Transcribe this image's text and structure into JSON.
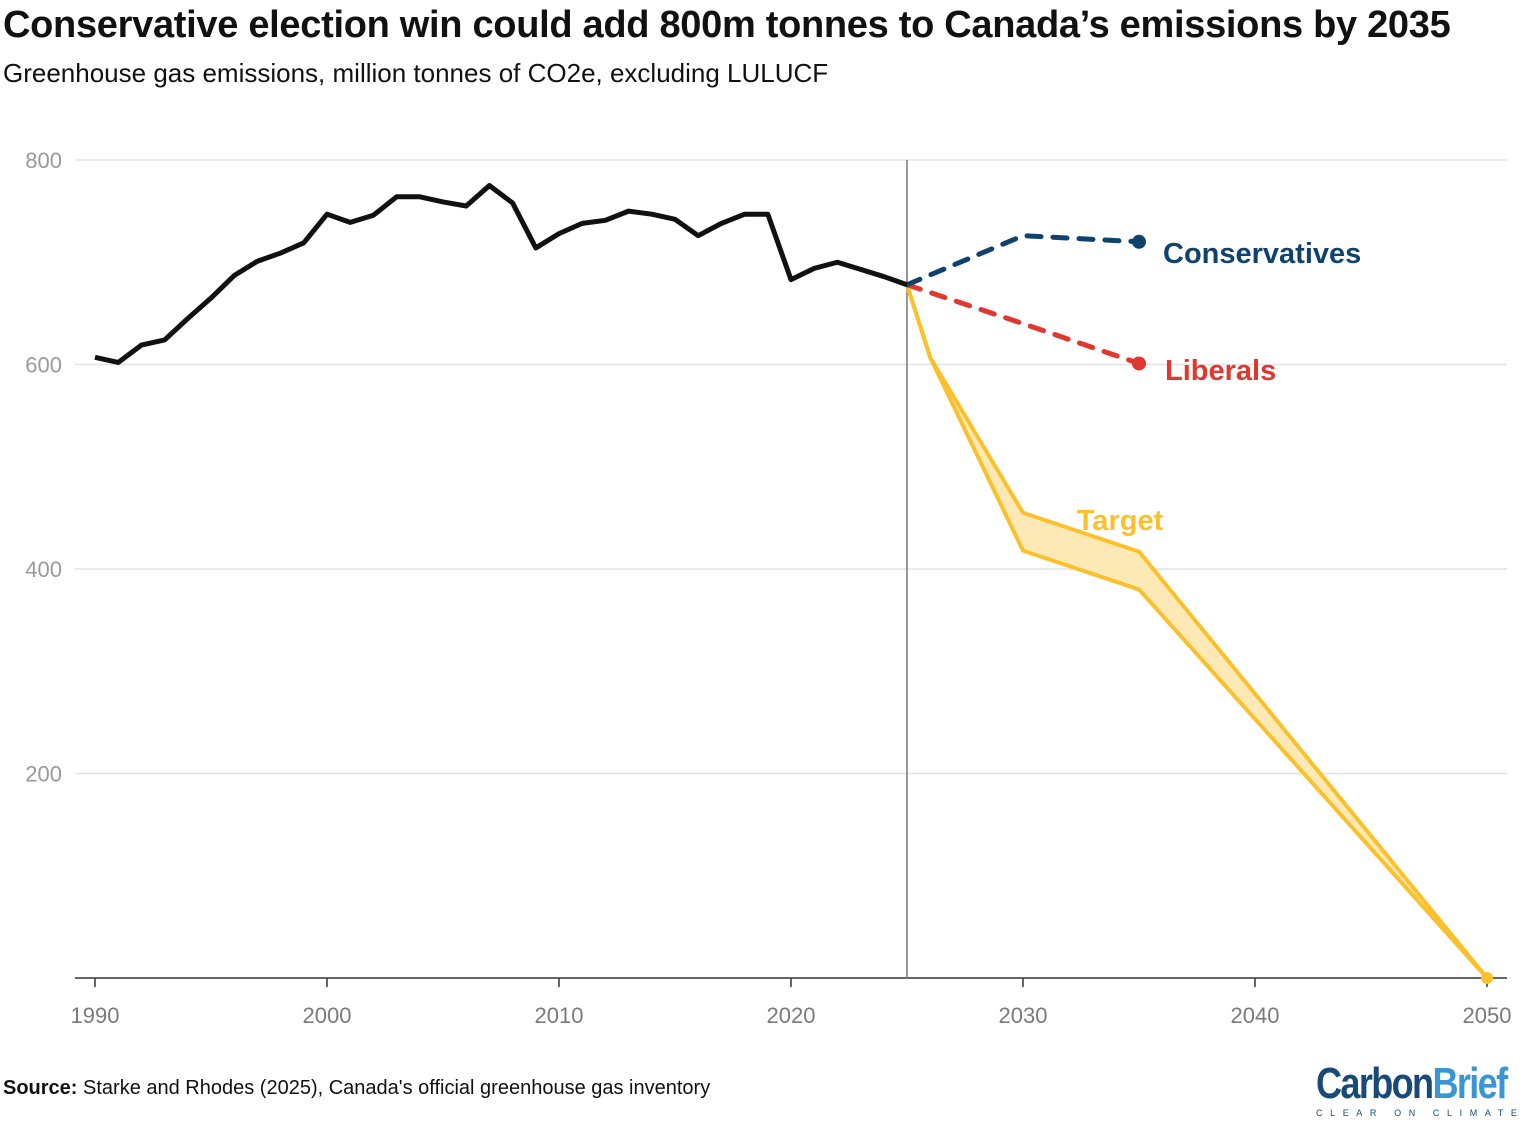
{
  "title": "Conservative election win could add 800m tonnes to Canada’s emissions by 2035",
  "subtitle": "Greenhouse gas emissions, million tonnes of CO2e, excluding LULUCF",
  "source_label": "Source:",
  "source_text": " Starke and Rhodes (2025), Canada's official greenhouse gas inventory",
  "logo": {
    "carbon": "Carbon",
    "brief": "Brief",
    "tagline": "CLEAR ON CLIMATE"
  },
  "chart_data": {
    "type": "line",
    "title": "Conservative election win could add 800m tonnes to Canada’s emissions by 2035",
    "ylabel": "",
    "xlabel": "",
    "xlim": [
      1990,
      2050
    ],
    "ylim": [
      0,
      800
    ],
    "x_ticks": [
      1990,
      2000,
      2010,
      2020,
      2030,
      2040,
      2050
    ],
    "y_ticks": [
      200,
      400,
      600,
      800
    ],
    "grid": "horizontal",
    "vertical_marker": 2025,
    "series": [
      {
        "color": "#111111",
        "style": "solid",
        "x": [
          1990,
          1991,
          1992,
          1993,
          1994,
          1995,
          1996,
          1997,
          1998,
          1999,
          2000,
          2001,
          2002,
          2003,
          2004,
          2005,
          2006,
          2007,
          2008,
          2009,
          2010,
          2011,
          2012,
          2013,
          2014,
          2015,
          2016,
          2017,
          2018,
          2019,
          2020,
          2021,
          2022,
          2023,
          2024,
          2025
        ],
        "y": [
          607,
          602,
          619,
          624,
          645,
          665,
          687,
          701,
          709,
          719,
          747,
          739,
          746,
          764,
          764,
          759,
          755,
          775,
          758,
          714,
          728,
          738,
          741,
          750,
          747,
          742,
          726,
          738,
          747,
          747,
          683,
          694,
          700,
          693,
          686,
          678
        ]
      },
      {
        "name": "Conservatives",
        "color": "#0f426d",
        "style": "dashed",
        "x": [
          2025,
          2030,
          2035
        ],
        "y": [
          678,
          726,
          720
        ]
      },
      {
        "name": "Liberals",
        "color": "#e0372e",
        "style": "dashed",
        "x": [
          2025,
          2030,
          2035
        ],
        "y": [
          678,
          640,
          601
        ]
      },
      {
        "name": "Target",
        "color": "#fbc12d",
        "fill": "#fde9b5",
        "style": "band",
        "x": [
          2025,
          2026,
          2030,
          2035,
          2050
        ],
        "upper": [
          678,
          607,
          455,
          417,
          0
        ],
        "lower": [
          678,
          607,
          418,
          380,
          0
        ]
      }
    ]
  }
}
